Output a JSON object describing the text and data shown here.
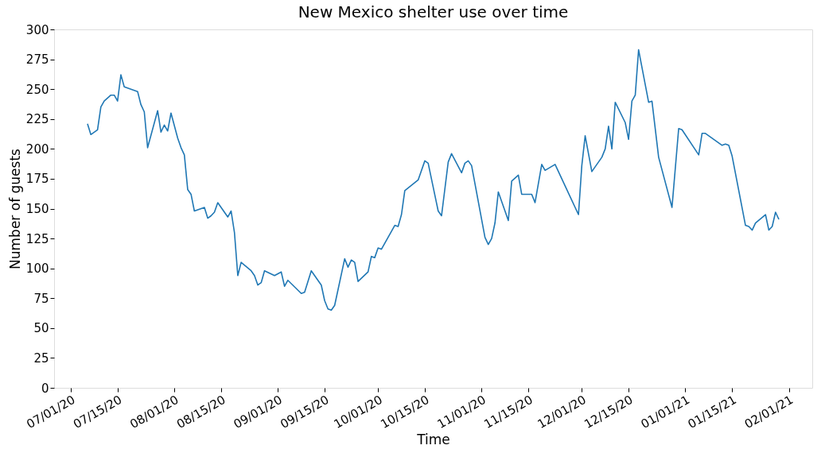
{
  "chart_data": {
    "type": "line",
    "title": "New Mexico shelter use over time",
    "xlabel": "Time",
    "ylabel": "Number of guests",
    "x": [
      "2020-07-06",
      "2020-07-07",
      "2020-07-09",
      "2020-07-10",
      "2020-07-11",
      "2020-07-13",
      "2020-07-14",
      "2020-07-15",
      "2020-07-16",
      "2020-07-17",
      "2020-07-20",
      "2020-07-21",
      "2020-07-22",
      "2020-07-23",
      "2020-07-24",
      "2020-07-27",
      "2020-07-28",
      "2020-07-29",
      "2020-07-30",
      "2020-07-31",
      "2020-08-02",
      "2020-08-03",
      "2020-08-04",
      "2020-08-05",
      "2020-08-06",
      "2020-08-07",
      "2020-08-10",
      "2020-08-11",
      "2020-08-12",
      "2020-08-13",
      "2020-08-14",
      "2020-08-17",
      "2020-08-18",
      "2020-08-19",
      "2020-08-20",
      "2020-08-21",
      "2020-08-24",
      "2020-08-25",
      "2020-08-26",
      "2020-08-27",
      "2020-08-28",
      "2020-08-31",
      "2020-09-02",
      "2020-09-03",
      "2020-09-04",
      "2020-09-08",
      "2020-09-09",
      "2020-09-11",
      "2020-09-14",
      "2020-09-15",
      "2020-09-16",
      "2020-09-17",
      "2020-09-18",
      "2020-09-21",
      "2020-09-22",
      "2020-09-23",
      "2020-09-24",
      "2020-09-25",
      "2020-09-28",
      "2020-09-29",
      "2020-09-30",
      "2020-10-01",
      "2020-10-02",
      "2020-10-06",
      "2020-10-07",
      "2020-10-08",
      "2020-10-09",
      "2020-10-13",
      "2020-10-15",
      "2020-10-16",
      "2020-10-19",
      "2020-10-20",
      "2020-10-22",
      "2020-10-23",
      "2020-10-26",
      "2020-10-27",
      "2020-10-28",
      "2020-10-29",
      "2020-11-02",
      "2020-11-03",
      "2020-11-04",
      "2020-11-05",
      "2020-11-06",
      "2020-11-09",
      "2020-11-10",
      "2020-11-12",
      "2020-11-13",
      "2020-11-16",
      "2020-11-17",
      "2020-11-19",
      "2020-11-20",
      "2020-11-23",
      "2020-11-30",
      "2020-12-01",
      "2020-12-02",
      "2020-12-04",
      "2020-12-07",
      "2020-12-08",
      "2020-12-09",
      "2020-12-10",
      "2020-12-11",
      "2020-12-14",
      "2020-12-15",
      "2020-12-16",
      "2020-12-17",
      "2020-12-18",
      "2020-12-21",
      "2020-12-22",
      "2020-12-24",
      "2020-12-28",
      "2020-12-30",
      "2020-12-31",
      "2021-01-05",
      "2021-01-06",
      "2021-01-07",
      "2021-01-12",
      "2021-01-13",
      "2021-01-14",
      "2021-01-15",
      "2021-01-19",
      "2021-01-20",
      "2021-01-21",
      "2021-01-22",
      "2021-01-25",
      "2021-01-26",
      "2021-01-27",
      "2021-01-28",
      "2021-01-29"
    ],
    "series": [
      {
        "color": "#1f77b4",
        "values": [
          221,
          212,
          216,
          235,
          240,
          245,
          245,
          240,
          262,
          252,
          249,
          248,
          237,
          231,
          201,
          232,
          214,
          220,
          215,
          230,
          209,
          201,
          195,
          166,
          162,
          148,
          151,
          142,
          144,
          147,
          155,
          143,
          148,
          130,
          94,
          105,
          98,
          94,
          86,
          88,
          98,
          94,
          97,
          85,
          90,
          79,
          80,
          98,
          86,
          73,
          66,
          65,
          69,
          108,
          101,
          107,
          105,
          89,
          97,
          110,
          109,
          117,
          116,
          136,
          135,
          145,
          165,
          174,
          190,
          188,
          148,
          144,
          189,
          196,
          180,
          188,
          190,
          186,
          126,
          120,
          125,
          138,
          164,
          140,
          173,
          178,
          162,
          162,
          155,
          187,
          182,
          187,
          145,
          186,
          211,
          181,
          193,
          200,
          219,
          200,
          239,
          222,
          208,
          240,
          245,
          283,
          239,
          240,
          193,
          151,
          217,
          216,
          195,
          213,
          213,
          203,
          204,
          203,
          194,
          136,
          135,
          132,
          138,
          145,
          132,
          135,
          147,
          141
        ]
      }
    ],
    "xlim": [
      "2020-06-26",
      "2021-02-08"
    ],
    "xticks": [
      {
        "value": "2020-07-01",
        "label": "07/01/20"
      },
      {
        "value": "2020-07-15",
        "label": "07/15/20"
      },
      {
        "value": "2020-08-01",
        "label": "08/01/20"
      },
      {
        "value": "2020-08-15",
        "label": "08/15/20"
      },
      {
        "value": "2020-09-01",
        "label": "09/01/20"
      },
      {
        "value": "2020-09-15",
        "label": "09/15/20"
      },
      {
        "value": "2020-10-01",
        "label": "10/01/20"
      },
      {
        "value": "2020-10-15",
        "label": "10/15/20"
      },
      {
        "value": "2020-11-01",
        "label": "11/01/20"
      },
      {
        "value": "2020-11-15",
        "label": "11/15/20"
      },
      {
        "value": "2020-12-01",
        "label": "12/01/20"
      },
      {
        "value": "2020-12-15",
        "label": "12/15/20"
      },
      {
        "value": "2021-01-01",
        "label": "01/01/21"
      },
      {
        "value": "2021-01-15",
        "label": "01/15/21"
      },
      {
        "value": "2021-02-01",
        "label": "02/01/21"
      }
    ],
    "ylim": [
      0,
      300
    ],
    "yticks": [
      0,
      25,
      50,
      75,
      100,
      125,
      150,
      175,
      200,
      225,
      250,
      275,
      300
    ],
    "grid": false,
    "marker": "none",
    "line_style": "solid"
  }
}
